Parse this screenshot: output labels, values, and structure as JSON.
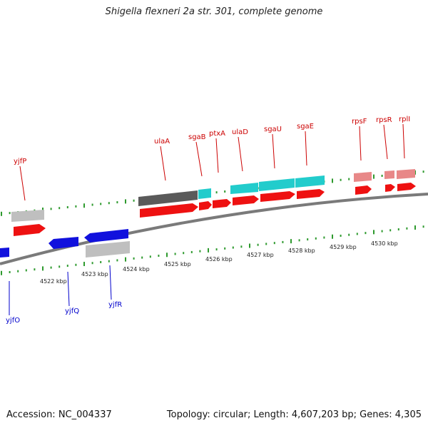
{
  "title": "Shigella flexneri 2a str. 301, complete genome",
  "accession_text": "Accession: NC_004337",
  "summary_text": "Topology: circular; Length: 4,607,203 bp; Genes: 4,305",
  "colors": {
    "backbone": "#7a7a7a",
    "tick": "#2e9a2e",
    "forward_label": "#cc0000",
    "reverse_label": "#0000cc",
    "cds_forward": "#ee1111",
    "cds_reverse": "#1111dd",
    "gene_gray": "#bfbfbf",
    "gene_dark": "#5a5a5a",
    "gene_cyan": "#22cccc",
    "gene_pink": "#e88888",
    "kbp_text": "#222222"
  },
  "scale": {
    "unit": "kbp",
    "labels": [
      "4522 kbp",
      "4523 kbp",
      "4524 kbp",
      "4525 kbp",
      "4526 kbp",
      "4527 kbp",
      "4528 kbp",
      "4529 kbp",
      "4530 kbp"
    ]
  },
  "genes": {
    "forward": [
      "yjfP",
      "ulaA",
      "sgaB",
      "ptxA",
      "ulaD",
      "sgaU",
      "sgaE",
      "rpsF",
      "rpsR",
      "rplI"
    ],
    "reverse": [
      "yjfO",
      "yjfQ",
      "yjfR"
    ]
  }
}
